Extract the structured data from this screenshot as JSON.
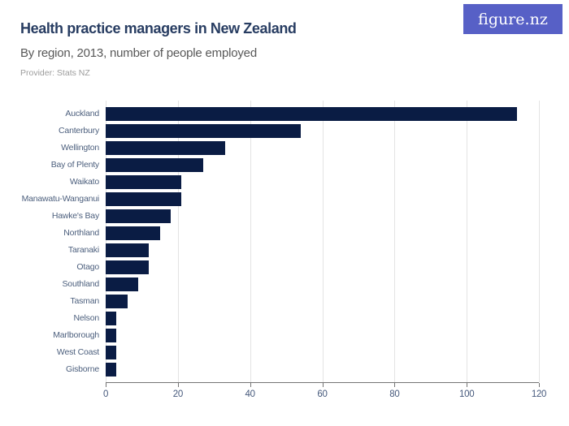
{
  "header": {
    "title": "Health practice managers in New Zealand",
    "subtitle": "By region, 2013, number of people employed",
    "provider": "Provider: Stats NZ",
    "logo_text": "figure.nz"
  },
  "colors": {
    "bar": "#0a1c44",
    "title": "#283d62",
    "subtitle": "#585858",
    "provider": "#9c9c9c",
    "category_label": "#4c5f7d",
    "tick_label": "#46597c",
    "gridline": "#e3e3e3",
    "axis": "#757575",
    "logo_bg": "#5760c6",
    "logo_text": "#ffffff"
  },
  "chart_data": {
    "type": "bar",
    "orientation": "horizontal",
    "title": "Health practice managers in New Zealand",
    "subtitle": "By region, 2013, number of people employed",
    "provider": "Provider: Stats NZ",
    "categories": [
      "Auckland",
      "Canterbury",
      "Wellington",
      "Bay of Plenty",
      "Waikato",
      "Manawatu-Wanganui",
      "Hawke's Bay",
      "Northland",
      "Taranaki",
      "Otago",
      "Southland",
      "Tasman",
      "Nelson",
      "Marlborough",
      "West Coast",
      "Gisborne"
    ],
    "values": [
      114,
      54,
      33,
      27,
      21,
      21,
      18,
      15,
      12,
      12,
      9,
      6,
      3,
      3,
      3,
      3
    ],
    "xlabel": "",
    "ylabel": "",
    "xlim": [
      0,
      120
    ],
    "xticks": [
      0,
      20,
      40,
      60,
      80,
      100,
      120
    ],
    "grid": true,
    "legend": false
  }
}
